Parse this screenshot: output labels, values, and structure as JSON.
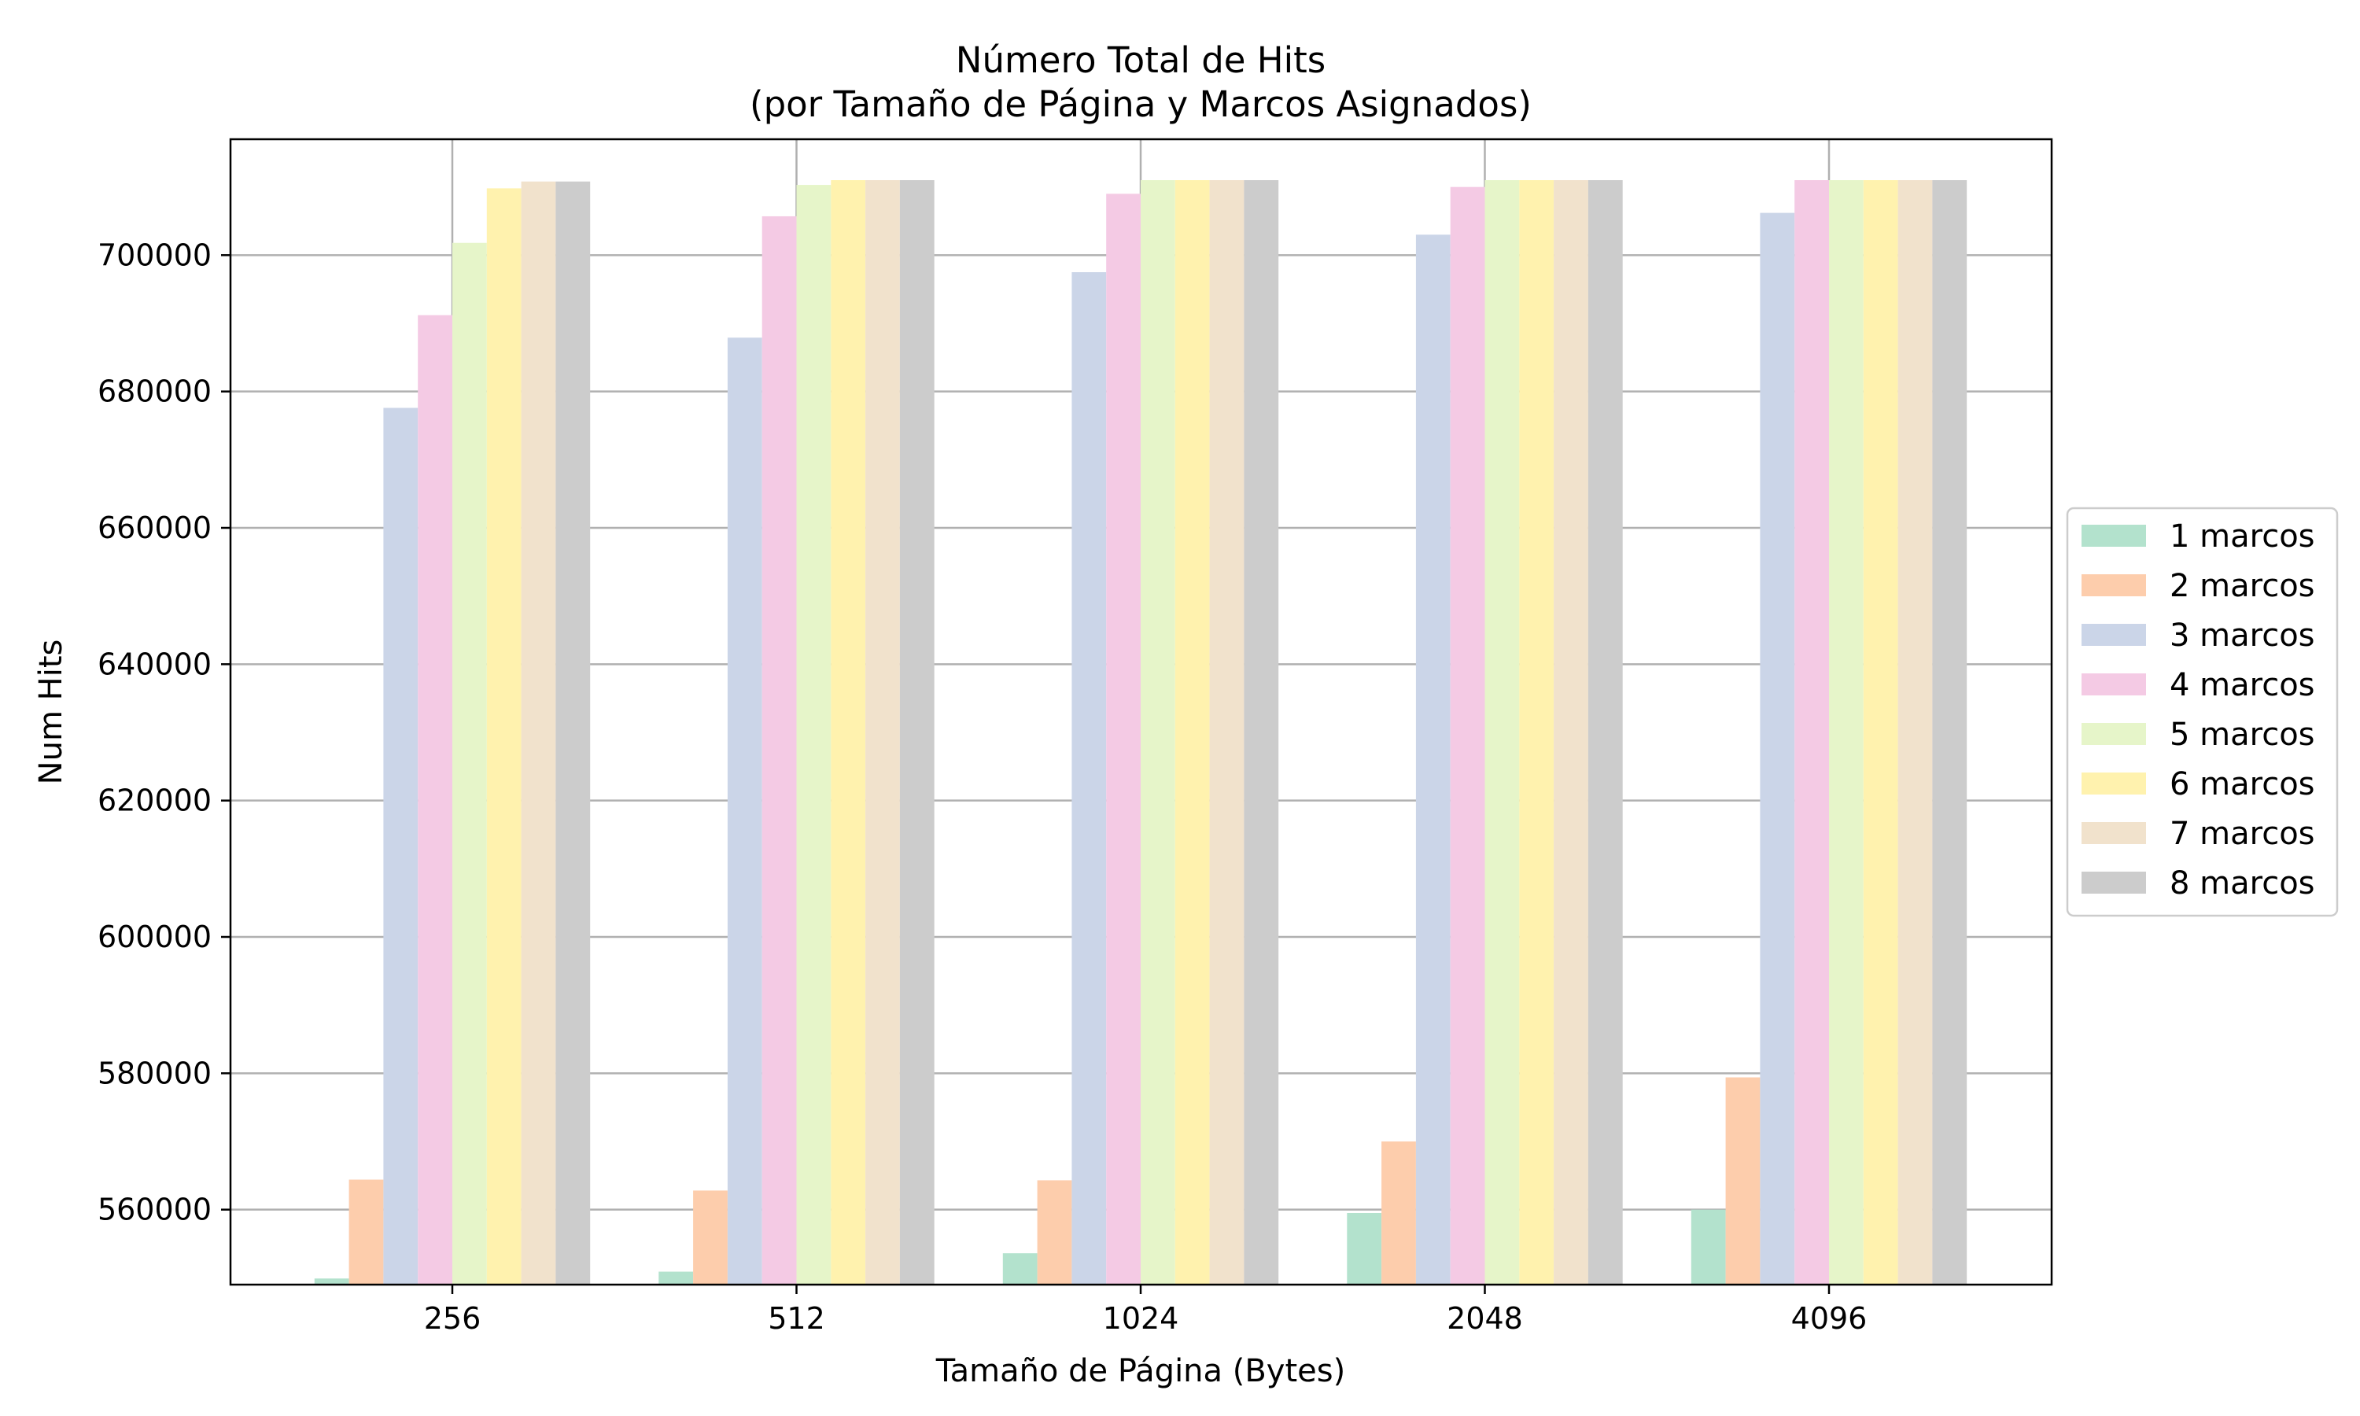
{
  "chart_data": {
    "type": "bar",
    "title": "Número Total de Hits",
    "subtitle": "(por Tamaño de Página y Marcos Asignados)",
    "xlabel": "Tamaño de Página (Bytes)",
    "ylabel": "Num Hits",
    "categories": [
      "256",
      "512",
      "1024",
      "2048",
      "4096"
    ],
    "ylim": [
      549000,
      717000
    ],
    "yticks": [
      560000,
      580000,
      600000,
      620000,
      640000,
      660000,
      680000,
      700000
    ],
    "grid": true,
    "legend_position": "center-right",
    "series": [
      {
        "name": "1 marcos",
        "color": "#b3e2cd",
        "values": [
          549900,
          550900,
          553600,
          559500,
          560000
        ]
      },
      {
        "name": "2 marcos",
        "color": "#fdcdac",
        "values": [
          564400,
          562800,
          564300,
          570000,
          579400
        ]
      },
      {
        "name": "3 marcos",
        "color": "#cbd5e8",
        "values": [
          677600,
          687900,
          697500,
          703000,
          706200
        ]
      },
      {
        "name": "4 marcos",
        "color": "#f4cae4",
        "values": [
          691200,
          705700,
          709000,
          710000,
          711000
        ]
      },
      {
        "name": "5 marcos",
        "color": "#e6f5c9",
        "values": [
          701800,
          710300,
          711000,
          711000,
          711000
        ]
      },
      {
        "name": "6 marcos",
        "color": "#fff2ae",
        "values": [
          709800,
          711000,
          711000,
          711000,
          711000
        ]
      },
      {
        "name": "7 marcos",
        "color": "#f1e2cc",
        "values": [
          710800,
          711000,
          711000,
          711000,
          711000
        ]
      },
      {
        "name": "8 marcos",
        "color": "#cccccc",
        "values": [
          710800,
          711000,
          711000,
          711000,
          711000
        ]
      }
    ]
  }
}
